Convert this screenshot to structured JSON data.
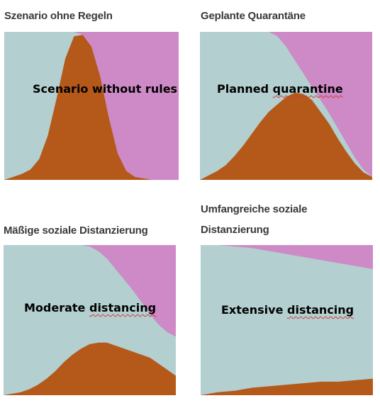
{
  "colors": {
    "susceptible": "#b3cfd0",
    "infected": "#b4591a",
    "recovered": "#cd8ac6"
  },
  "chart_data": [
    {
      "type": "area",
      "title": "Szenario ohne Regeln",
      "annotation_parts": [
        "Scenario",
        "without",
        "rules"
      ],
      "annotation_underlined": [
        false,
        false,
        false
      ],
      "x": [
        0,
        5,
        10,
        15,
        20,
        25,
        30,
        35,
        40,
        45,
        50,
        55,
        60,
        65,
        70,
        75,
        80,
        85,
        90,
        95,
        100
      ],
      "series": [
        {
          "key": "infected",
          "values": [
            0,
            2,
            4,
            7,
            14,
            30,
            55,
            82,
            97,
            98,
            90,
            70,
            42,
            18,
            6,
            2,
            1,
            0,
            0,
            0,
            0
          ]
        },
        {
          "key": "recovered",
          "values": [
            0,
            0,
            0,
            0,
            0,
            0,
            0,
            0,
            0,
            2,
            10,
            30,
            58,
            82,
            94,
            98,
            99,
            100,
            100,
            100,
            100
          ]
        }
      ],
      "ylim": [
        0,
        100
      ]
    },
    {
      "type": "area",
      "title": "Geplante Quarantäne",
      "annotation_parts": [
        "Planned",
        "quarantine"
      ],
      "annotation_underlined": [
        false,
        true
      ],
      "x": [
        0,
        5,
        10,
        15,
        20,
        25,
        30,
        35,
        40,
        45,
        50,
        55,
        60,
        65,
        70,
        75,
        80,
        85,
        90,
        95,
        100
      ],
      "series": [
        {
          "key": "infected",
          "values": [
            0,
            3,
            6,
            10,
            16,
            23,
            31,
            39,
            46,
            51,
            56,
            59,
            58,
            54,
            46,
            38,
            28,
            19,
            11,
            5,
            2
          ]
        },
        {
          "key": "recovered",
          "values": [
            0,
            0,
            0,
            0,
            0,
            0,
            0,
            0,
            0,
            3,
            10,
            19,
            28,
            37,
            46,
            55,
            65,
            75,
            85,
            93,
            98
          ]
        }
      ],
      "ylim": [
        0,
        100
      ]
    },
    {
      "type": "area",
      "title": "Mäßige soziale Distanzierung",
      "annotation_parts": [
        "Moderate",
        "distancing"
      ],
      "annotation_underlined": [
        false,
        true
      ],
      "x": [
        0,
        5,
        10,
        15,
        20,
        25,
        30,
        35,
        40,
        45,
        50,
        55,
        60,
        65,
        70,
        75,
        80,
        85,
        90,
        95,
        100
      ],
      "series": [
        {
          "key": "infected",
          "values": [
            0,
            1,
            2,
            4,
            7,
            11,
            16,
            22,
            27,
            31,
            34,
            35,
            35,
            33,
            31,
            29,
            27,
            25,
            21,
            17,
            13
          ]
        },
        {
          "key": "recovered",
          "values": [
            0,
            0,
            0,
            0,
            0,
            0,
            0,
            0,
            0,
            0,
            1,
            4,
            9,
            16,
            23,
            30,
            38,
            46,
            53,
            58,
            61
          ]
        }
      ],
      "ylim": [
        0,
        100
      ]
    },
    {
      "type": "area",
      "title_lines": [
        "Umfangreiche soziale",
        "Distanzierung"
      ],
      "annotation_parts": [
        "Extensive",
        "distancing"
      ],
      "annotation_underlined": [
        false,
        true
      ],
      "x": [
        0,
        10,
        20,
        30,
        40,
        50,
        60,
        70,
        80,
        90,
        100
      ],
      "series": [
        {
          "key": "infected",
          "values": [
            0,
            2,
            3,
            5,
            6,
            7,
            8,
            9,
            9,
            10,
            11
          ]
        },
        {
          "key": "recovered",
          "values": [
            0,
            0,
            1,
            2,
            4,
            6,
            8,
            10,
            12,
            14,
            16
          ]
        }
      ],
      "ylim": [
        0,
        100
      ]
    }
  ]
}
